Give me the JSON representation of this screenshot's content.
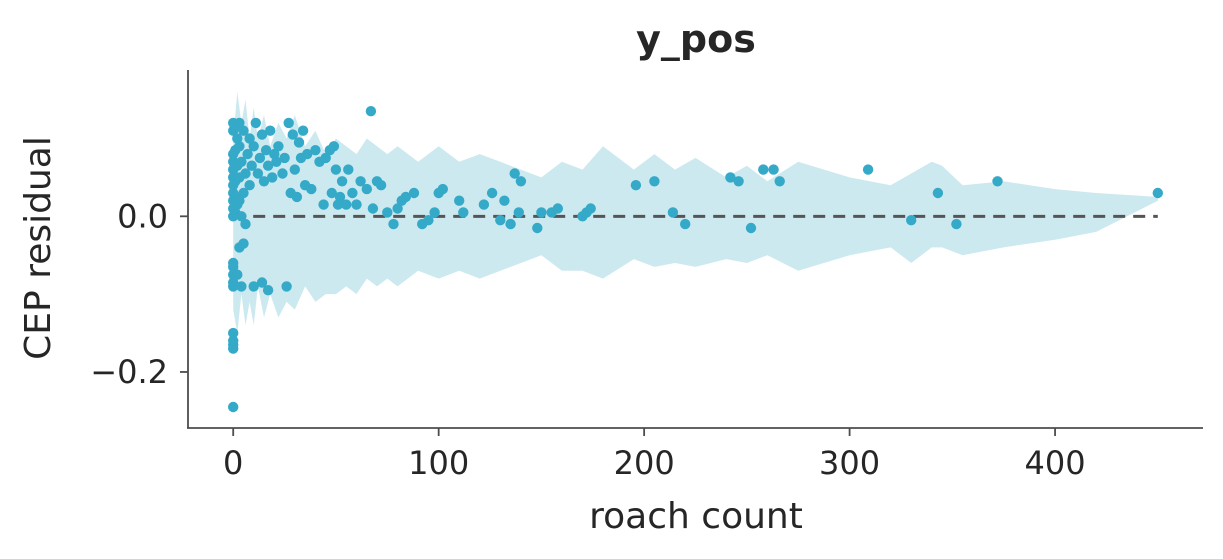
{
  "chart_data": {
    "type": "scatter",
    "title": "y_pos",
    "xlabel": "roach count",
    "ylabel": "CEP residual",
    "xlim": [
      -22,
      472
    ],
    "ylim": [
      -0.272,
      0.188
    ],
    "xticks": [
      0,
      100,
      200,
      300,
      400
    ],
    "xtick_labels": [
      "0",
      "100",
      "200",
      "300",
      "400"
    ],
    "yticks": [
      -0.2,
      0.0
    ],
    "ytick_labels": [
      "−0.2",
      "0.0"
    ],
    "grid": false,
    "reference_line": {
      "y": 0.0,
      "style": "dashed",
      "color": "#555555"
    },
    "colors": {
      "points": "#35a9c8",
      "band": "#cde9f0"
    },
    "band": {
      "x": [
        0,
        2,
        4,
        6,
        8,
        10,
        12,
        15,
        18,
        22,
        26,
        30,
        35,
        40,
        45,
        50,
        55,
        60,
        65,
        70,
        75,
        80,
        90,
        100,
        110,
        120,
        130,
        140,
        150,
        160,
        170,
        180,
        195,
        205,
        215,
        225,
        240,
        250,
        260,
        275,
        300,
        320,
        330,
        340,
        345,
        355,
        375,
        400,
        420,
        450
      ],
      "upper": [
        0.1,
        0.16,
        0.12,
        0.15,
        0.1,
        0.14,
        0.1,
        0.13,
        0.09,
        0.12,
        0.1,
        0.13,
        0.09,
        0.11,
        0.08,
        0.1,
        0.09,
        0.08,
        0.1,
        0.09,
        0.08,
        0.09,
        0.07,
        0.09,
        0.07,
        0.08,
        0.07,
        0.06,
        0.05,
        0.07,
        0.06,
        0.09,
        0.06,
        0.08,
        0.06,
        0.075,
        0.05,
        0.065,
        0.045,
        0.07,
        0.05,
        0.04,
        0.055,
        0.07,
        0.065,
        0.04,
        0.045,
        0.035,
        0.03,
        0.025
      ],
      "lower": [
        -0.12,
        -0.15,
        -0.1,
        -0.14,
        -0.11,
        -0.14,
        -0.09,
        -0.13,
        -0.1,
        -0.13,
        -0.11,
        -0.12,
        -0.09,
        -0.11,
        -0.1,
        -0.1,
        -0.09,
        -0.1,
        -0.08,
        -0.09,
        -0.08,
        -0.09,
        -0.07,
        -0.08,
        -0.07,
        -0.08,
        -0.07,
        -0.06,
        -0.05,
        -0.07,
        -0.07,
        -0.08,
        -0.055,
        -0.065,
        -0.06,
        -0.065,
        -0.055,
        -0.06,
        -0.05,
        -0.07,
        -0.05,
        -0.04,
        -0.06,
        -0.04,
        -0.04,
        -0.05,
        -0.04,
        -0.03,
        -0.02,
        0.02
      ]
    },
    "points": [
      [
        0,
        -0.245
      ],
      [
        0,
        -0.17
      ],
      [
        0,
        -0.165
      ],
      [
        0,
        -0.16
      ],
      [
        0,
        -0.15
      ],
      [
        0,
        -0.09
      ],
      [
        0,
        -0.085
      ],
      [
        0,
        -0.075
      ],
      [
        0,
        -0.065
      ],
      [
        0,
        -0.06
      ],
      [
        0,
        0.0
      ],
      [
        0,
        0.01
      ],
      [
        0,
        0.02
      ],
      [
        0,
        0.03
      ],
      [
        0,
        0.04
      ],
      [
        0,
        0.05
      ],
      [
        0,
        0.06
      ],
      [
        0,
        0.07
      ],
      [
        0,
        0.08
      ],
      [
        0,
        0.11
      ],
      [
        0,
        0.12
      ],
      [
        1,
        0.005
      ],
      [
        1,
        0.025
      ],
      [
        1,
        0.045
      ],
      [
        1,
        0.085
      ],
      [
        1,
        0.115
      ],
      [
        2,
        -0.075
      ],
      [
        2,
        0.015
      ],
      [
        2,
        0.065
      ],
      [
        2,
        0.1
      ],
      [
        3,
        -0.04
      ],
      [
        3,
        0.02
      ],
      [
        3,
        0.05
      ],
      [
        3,
        0.09
      ],
      [
        3,
        0.12
      ],
      [
        4,
        -0.09
      ],
      [
        4,
        0.0
      ],
      [
        4,
        0.07
      ],
      [
        5,
        -0.035
      ],
      [
        5,
        0.03
      ],
      [
        5,
        0.11
      ],
      [
        6,
        -0.01
      ],
      [
        6,
        0.055
      ],
      [
        7,
        0.08
      ],
      [
        8,
        0.04
      ],
      [
        8,
        0.1
      ],
      [
        9,
        0.065
      ],
      [
        10,
        -0.09
      ],
      [
        10,
        0.09
      ],
      [
        11,
        0.12
      ],
      [
        12,
        0.055
      ],
      [
        13,
        0.075
      ],
      [
        14,
        -0.085
      ],
      [
        14,
        0.105
      ],
      [
        15,
        0.045
      ],
      [
        16,
        0.085
      ],
      [
        17,
        -0.095
      ],
      [
        17,
        0.065
      ],
      [
        18,
        0.11
      ],
      [
        19,
        0.05
      ],
      [
        20,
        0.08
      ],
      [
        21,
        0.07
      ],
      [
        22,
        0.09
      ],
      [
        24,
        0.055
      ],
      [
        25,
        0.075
      ],
      [
        26,
        -0.09
      ],
      [
        27,
        0.12
      ],
      [
        28,
        0.03
      ],
      [
        29,
        0.105
      ],
      [
        30,
        0.06
      ],
      [
        31,
        0.025
      ],
      [
        32,
        0.095
      ],
      [
        33,
        0.075
      ],
      [
        34,
        0.11
      ],
      [
        35,
        0.04
      ],
      [
        36,
        0.08
      ],
      [
        38,
        0.035
      ],
      [
        40,
        0.085
      ],
      [
        42,
        0.07
      ],
      [
        44,
        0.015
      ],
      [
        45,
        0.075
      ],
      [
        47,
        0.085
      ],
      [
        48,
        0.03
      ],
      [
        49,
        0.09
      ],
      [
        50,
        0.06
      ],
      [
        51,
        0.015
      ],
      [
        52,
        0.025
      ],
      [
        53,
        0.045
      ],
      [
        55,
        0.015
      ],
      [
        56,
        0.06
      ],
      [
        58,
        0.03
      ],
      [
        60,
        0.015
      ],
      [
        62,
        0.045
      ],
      [
        65,
        0.035
      ],
      [
        67,
        0.135
      ],
      [
        68,
        0.01
      ],
      [
        70,
        0.045
      ],
      [
        72,
        0.04
      ],
      [
        75,
        0.005
      ],
      [
        78,
        -0.01
      ],
      [
        80,
        0.01
      ],
      [
        82,
        0.02
      ],
      [
        84,
        0.025
      ],
      [
        88,
        0.03
      ],
      [
        92,
        -0.01
      ],
      [
        95,
        -0.005
      ],
      [
        98,
        0.005
      ],
      [
        100,
        0.03
      ],
      [
        102,
        0.035
      ],
      [
        110,
        0.02
      ],
      [
        112,
        0.005
      ],
      [
        122,
        0.015
      ],
      [
        126,
        0.03
      ],
      [
        130,
        -0.005
      ],
      [
        132,
        0.02
      ],
      [
        135,
        -0.01
      ],
      [
        137,
        0.055
      ],
      [
        139,
        0.005
      ],
      [
        140,
        0.045
      ],
      [
        148,
        -0.015
      ],
      [
        150,
        0.005
      ],
      [
        155,
        0.005
      ],
      [
        158,
        0.01
      ],
      [
        170,
        0.0
      ],
      [
        172,
        0.005
      ],
      [
        174,
        0.01
      ],
      [
        196,
        0.04
      ],
      [
        205,
        0.045
      ],
      [
        214,
        0.005
      ],
      [
        220,
        -0.01
      ],
      [
        242,
        0.05
      ],
      [
        246,
        0.045
      ],
      [
        252,
        -0.015
      ],
      [
        258,
        0.06
      ],
      [
        263,
        0.06
      ],
      [
        266,
        0.045
      ],
      [
        309,
        0.06
      ],
      [
        330,
        -0.005
      ],
      [
        343,
        0.03
      ],
      [
        352,
        -0.01
      ],
      [
        372,
        0.045
      ],
      [
        450,
        0.03
      ]
    ]
  }
}
